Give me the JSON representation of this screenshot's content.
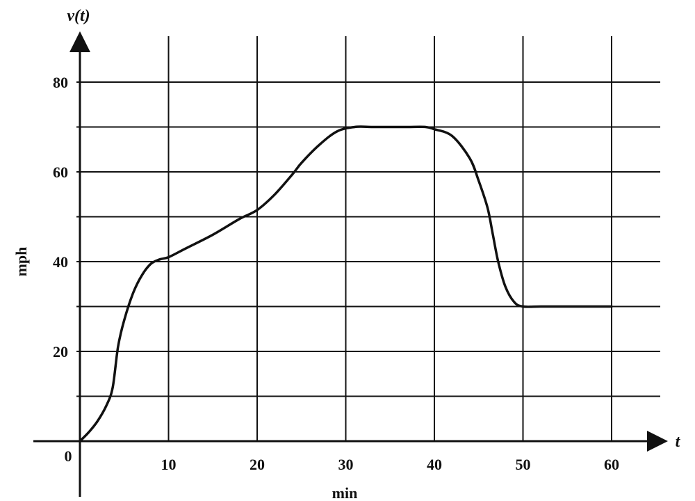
{
  "chart_data": {
    "type": "line",
    "title": "",
    "y_axis_title": "v(t)",
    "x_axis_title": "t",
    "xlabel": "min",
    "ylabel": "mph",
    "origin_label": "0",
    "xlim": [
      0,
      60
    ],
    "ylim": [
      0,
      80
    ],
    "x_ticks": [
      10,
      20,
      30,
      40,
      50,
      60
    ],
    "x_tick_labels": [
      "10",
      "20",
      "30",
      "40",
      "50",
      "60"
    ],
    "y_ticks": [
      20,
      40,
      60,
      80
    ],
    "y_tick_labels": [
      "20",
      "40",
      "60",
      "80"
    ],
    "grid": true,
    "grid_x_values": [
      10,
      20,
      30,
      40,
      50,
      60
    ],
    "grid_y_values": [
      10,
      20,
      30,
      40,
      50,
      60,
      70,
      80
    ],
    "colors": {
      "line": "#111111",
      "grid": "#111111",
      "background": "#ffffff"
    },
    "series": [
      {
        "x": [
          0,
          1,
          2,
          3,
          3.7,
          4.3,
          5,
          6,
          7,
          8,
          9,
          10,
          12,
          15,
          18,
          20,
          22,
          24,
          25,
          27,
          29,
          31,
          33,
          35,
          37,
          39,
          40,
          42,
          44,
          45,
          46,
          46.6,
          47.2,
          48,
          49,
          50,
          52,
          55,
          60
        ],
        "y": [
          0,
          2,
          4.5,
          8,
          12,
          21,
          27,
          33,
          37,
          39.5,
          40.5,
          41,
          43,
          46,
          49.5,
          51.5,
          55,
          59.5,
          62,
          66,
          69,
          70,
          70,
          70,
          70,
          70,
          69.5,
          68,
          63,
          58,
          52,
          46,
          40,
          34.5,
          31,
          30,
          30,
          30,
          30
        ]
      }
    ]
  }
}
